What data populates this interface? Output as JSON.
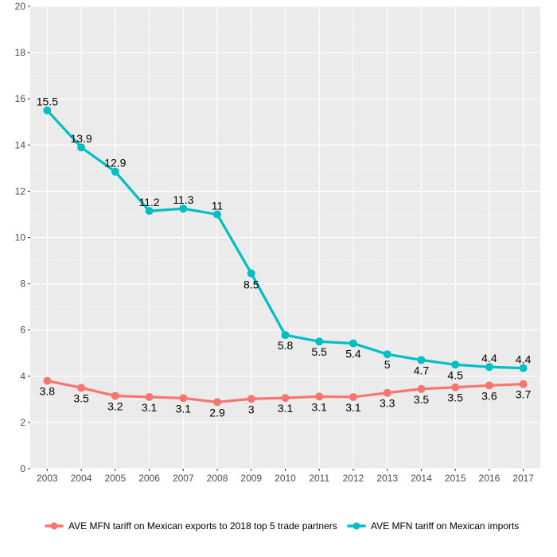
{
  "chart_data": {
    "type": "line",
    "title": "",
    "xlabel": "",
    "ylabel": "",
    "ylim": [
      0,
      20
    ],
    "y_ticks": [
      0,
      2,
      4,
      6,
      8,
      10,
      12,
      14,
      16,
      18,
      20
    ],
    "grid": true,
    "legend_position": "bottom",
    "categories": [
      "2003",
      "2004",
      "2005",
      "2006",
      "2007",
      "2008",
      "2009",
      "2010",
      "2011",
      "2012",
      "2013",
      "2014",
      "2015",
      "2016",
      "2017"
    ],
    "series": [
      {
        "name": "AVE MFN tariff on Mexican exports to 2018 top 5 trade partners",
        "color": "#F8766D",
        "values": [
          3.8,
          3.5,
          3.15,
          3.1,
          3.05,
          2.88,
          3.02,
          3.06,
          3.12,
          3.1,
          3.28,
          3.45,
          3.52,
          3.6,
          3.66
        ],
        "labels": [
          "3.8",
          "3.5",
          "3.2",
          "3.1",
          "3.1",
          "2.9",
          "3",
          "3.1",
          "3.1",
          "3.1",
          "3.3",
          "3.5",
          "3.5",
          "3.6",
          "3.7"
        ],
        "label_position": "below"
      },
      {
        "name": "AVE MFN tariff on Mexican imports",
        "color": "#00BFC4",
        "values": [
          15.5,
          13.9,
          12.85,
          11.15,
          11.25,
          11.0,
          8.45,
          5.78,
          5.5,
          5.42,
          4.95,
          4.7,
          4.5,
          4.4,
          4.35
        ],
        "labels": [
          "15.5",
          "13.9",
          "12.9",
          "11.2",
          "11.3",
          "11",
          "8.5",
          "5.8",
          "5.5",
          "5.4",
          "5",
          "4.7",
          "4.5",
          "4.4",
          "4.4"
        ],
        "label_position": "mixed"
      }
    ]
  }
}
